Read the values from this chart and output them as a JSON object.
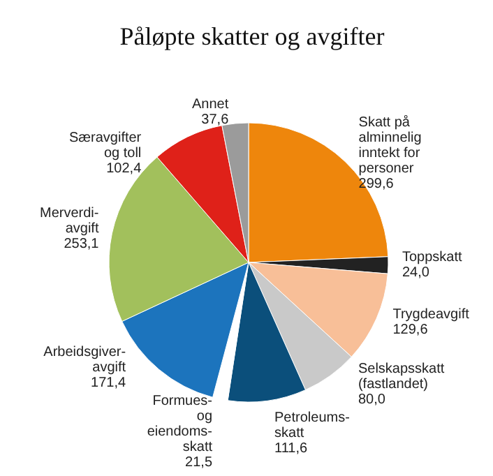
{
  "chart_data": {
    "type": "pie",
    "title": "Påløpte skatter og avgifter",
    "categories": [
      "Skatt på\nalminnelig\ninntekt for\npersoner",
      "Toppskatt",
      "Trygdeavgift",
      "Selskapsskatt\n(fastlandet)",
      "Petroleums-\nskatt",
      "Formues-\nog\neiendoms-\nskatt",
      "Arbeidsgiver-\navgift",
      "Merverdi-\navgift",
      "Særavgifter\nog toll",
      "Annet"
    ],
    "values": [
      299.6,
      24.0,
      129.6,
      80.0,
      111.6,
      21.5,
      171.4,
      253.1,
      102.4,
      37.6
    ],
    "colors": [
      "#ee860c",
      "#222222",
      "#f8bf98",
      "#c9c9c9",
      "#0b4f7b",
      "#ffffff",
      "#1c74bd",
      "#a2c05c",
      "#df2119",
      "#9b9b9b"
    ],
    "value_labels": [
      "299,6",
      "24,0",
      "129,6",
      "80,0",
      "111,6",
      "21,5",
      "171,4",
      "253,1",
      "102,4",
      "37,6"
    ],
    "legend": false
  }
}
